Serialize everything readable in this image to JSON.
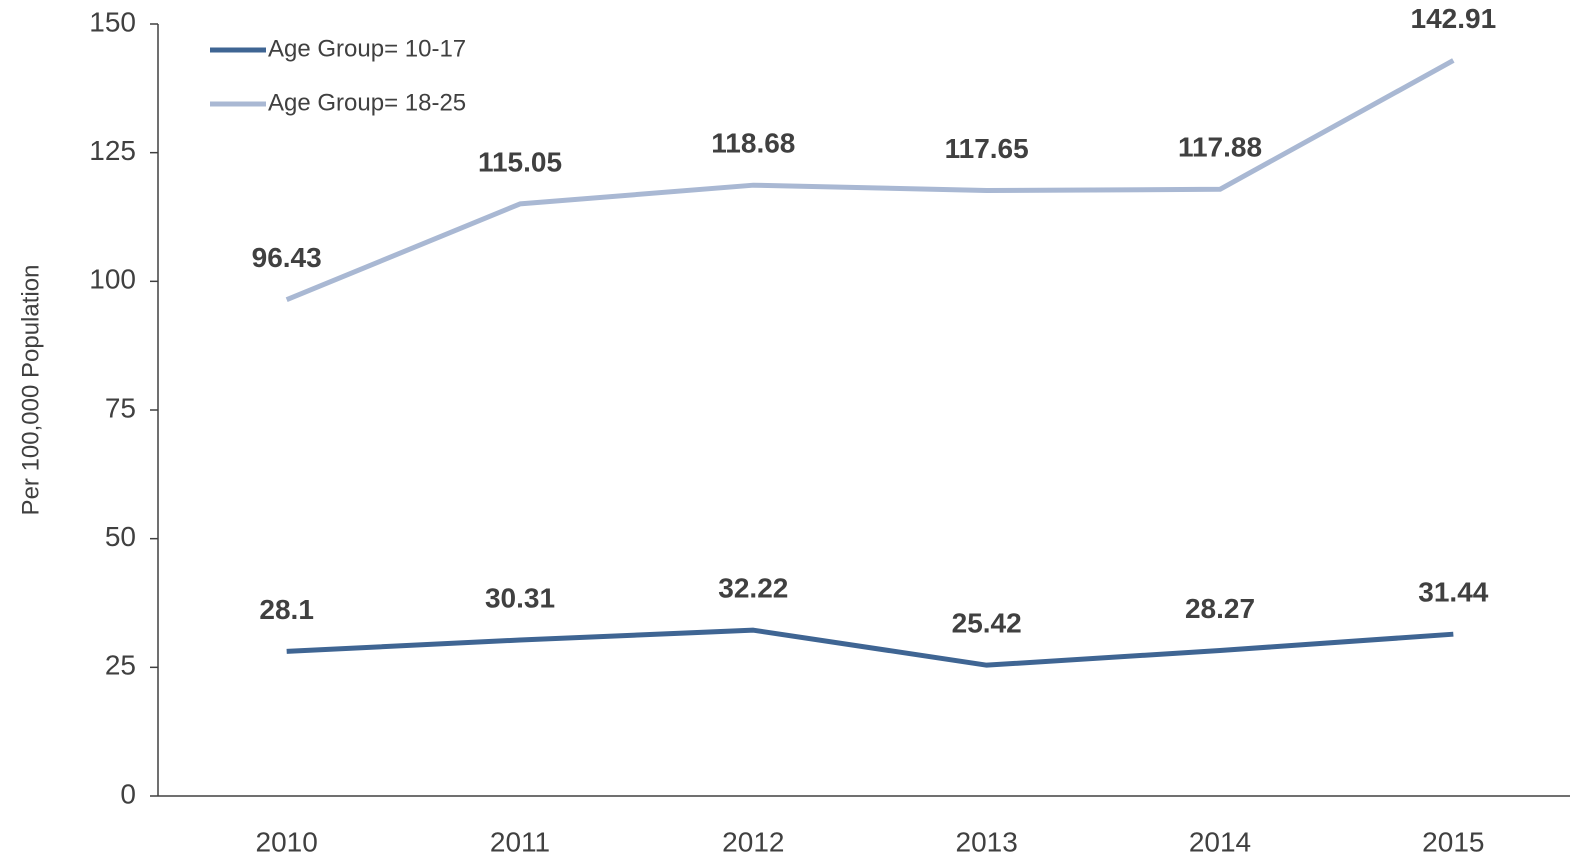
{
  "chart_data": {
    "type": "line",
    "y_label": "Per 100,000 Population",
    "categories": [
      "2010",
      "2011",
      "2012",
      "2013",
      "2014",
      "2015"
    ],
    "series": [
      {
        "name": "Age Group= 10-17",
        "color": "#3f6593",
        "values": [
          28.1,
          30.31,
          32.22,
          25.42,
          28.27,
          31.44
        ]
      },
      {
        "name": "Age Group= 18-25",
        "color": "#a9b8d3",
        "values": [
          96.43,
          115.05,
          118.68,
          117.65,
          117.88,
          142.91
        ]
      }
    ],
    "ylim": [
      0,
      150
    ],
    "yticks": [
      0,
      25,
      50,
      75,
      100,
      125,
      150
    ],
    "grid": false,
    "legend": "top-left"
  }
}
